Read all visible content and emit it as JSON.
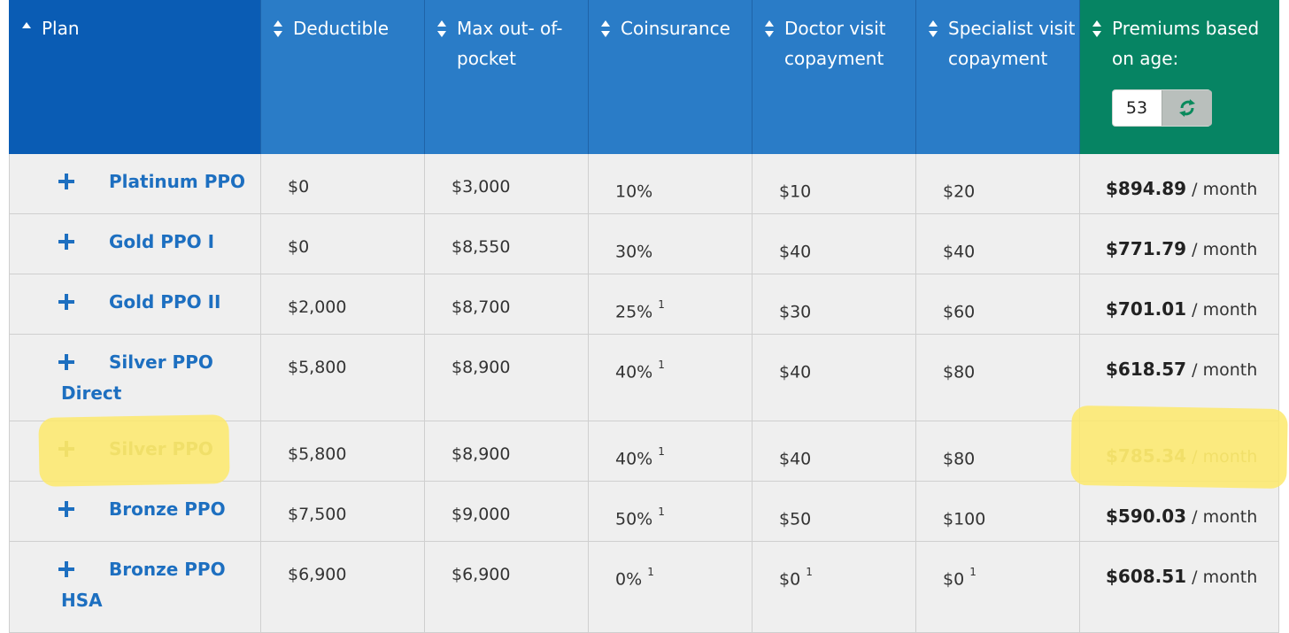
{
  "header": {
    "plan": "Plan",
    "deductible": "Deductible",
    "max_oop": "Max out- of- pocket",
    "coinsurance": "Coinsurance",
    "doctor": "Doctor visit copayment",
    "specialist": "Specialist visit copayment",
    "premiums": "Premiums based on age:",
    "age": "53",
    "refresh_icon": "refresh-icon"
  },
  "rows": [
    {
      "plan": "Platinum PPO",
      "deductible": "$0",
      "max_oop": "$3,000",
      "coins": "10%",
      "coins_note": "",
      "doctor": "$10",
      "doctor_note": "",
      "specialist": "$20",
      "specialist_note": "",
      "premium": "$894.89",
      "per": " / month"
    },
    {
      "plan": "Gold PPO I",
      "deductible": "$0",
      "max_oop": "$8,550",
      "coins": "30%",
      "coins_note": "",
      "doctor": "$40",
      "doctor_note": "",
      "specialist": "$40",
      "specialist_note": "",
      "premium": "$771.79",
      "per": " / month"
    },
    {
      "plan": "Gold PPO II",
      "deductible": "$2,000",
      "max_oop": "$8,700",
      "coins": "25%",
      "coins_note": "1",
      "doctor": "$30",
      "doctor_note": "",
      "specialist": "$60",
      "specialist_note": "",
      "premium": "$701.01",
      "per": " / month"
    },
    {
      "plan": "Silver PPO Direct",
      "deductible": "$5,800",
      "max_oop": "$8,900",
      "coins": "40%",
      "coins_note": "1",
      "doctor": "$40",
      "doctor_note": "",
      "specialist": "$80",
      "specialist_note": "",
      "premium": "$618.57",
      "per": " / month"
    },
    {
      "plan": "Silver PPO",
      "deductible": "$5,800",
      "max_oop": "$8,900",
      "coins": "40%",
      "coins_note": "1",
      "doctor": "$40",
      "doctor_note": "",
      "specialist": "$80",
      "specialist_note": "",
      "premium": "$785.34",
      "per": " / month"
    },
    {
      "plan": "Bronze PPO",
      "deductible": "$7,500",
      "max_oop": "$9,000",
      "coins": "50%",
      "coins_note": "1",
      "doctor": "$50",
      "doctor_note": "",
      "specialist": "$100",
      "specialist_note": "",
      "premium": "$590.03",
      "per": " / month"
    },
    {
      "plan": "Bronze PPO HSA",
      "deductible": "$6,900",
      "max_oop": "$6,900",
      "coins": "0%",
      "coins_note": "1",
      "doctor": "$0",
      "doctor_note": "1",
      "specialist": "$0",
      "specialist_note": "1",
      "premium": "$608.51",
      "per": " / month"
    }
  ],
  "colors": {
    "header_blue": "#2a7cc7",
    "header_plan": "#0a5cb4",
    "header_green": "#068463",
    "link_blue": "#1d6fc0",
    "highlighter": "#fde96b"
  }
}
